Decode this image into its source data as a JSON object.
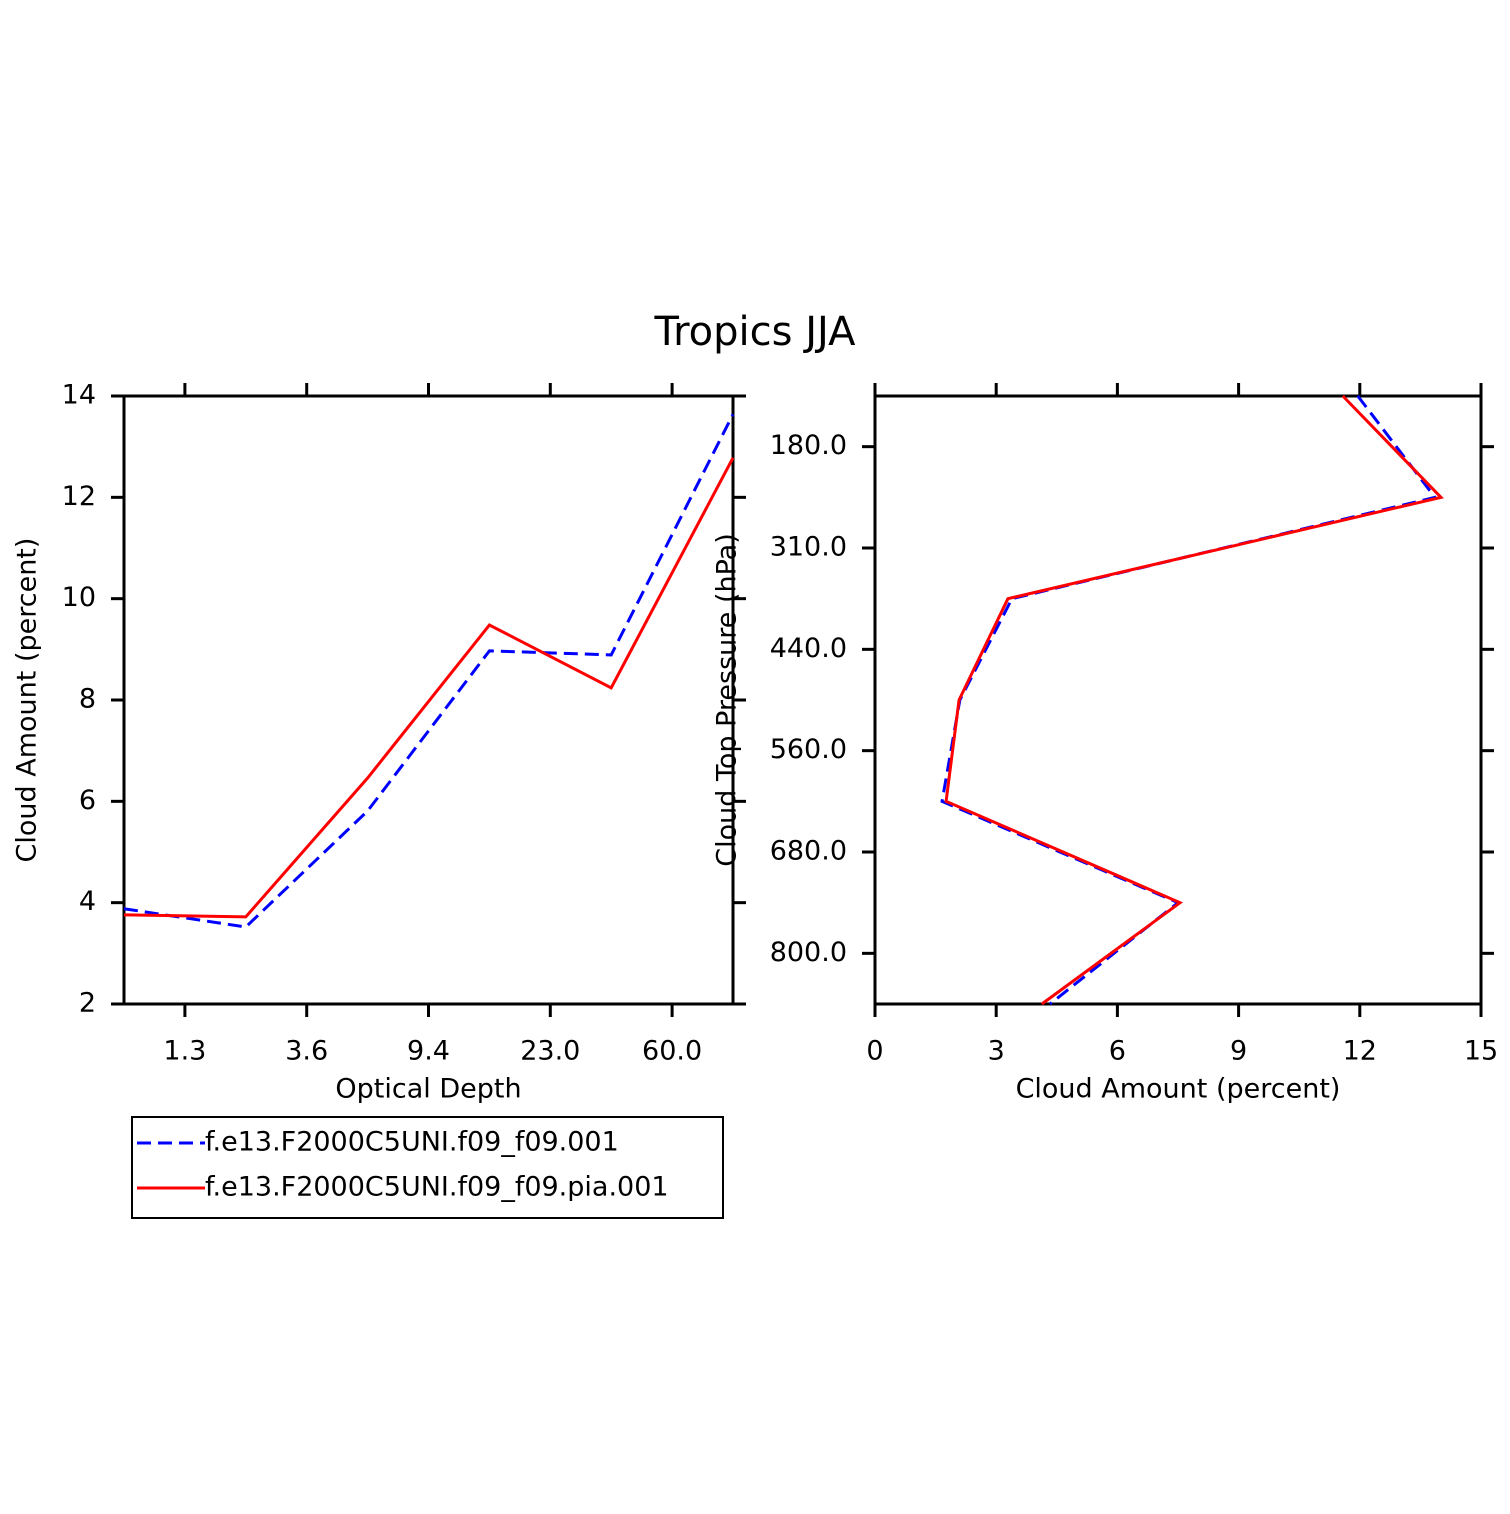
{
  "title": "Tropics JJA",
  "chart_data": [
    {
      "type": "line",
      "xlabel": "Optical Depth",
      "ylabel": "Cloud Amount (percent)",
      "x": [
        0,
        1,
        2,
        3,
        4,
        5
      ],
      "xlim": [
        0,
        5
      ],
      "xticks": [
        {
          "value": 0.5,
          "label": "1.3"
        },
        {
          "value": 1.5,
          "label": "3.6"
        },
        {
          "value": 2.5,
          "label": "9.4"
        },
        {
          "value": 3.5,
          "label": "23.0"
        },
        {
          "value": 4.5,
          "label": "60.0"
        }
      ],
      "ylim": [
        2,
        14
      ],
      "yticks": [
        2,
        4,
        6,
        8,
        10,
        12,
        14
      ],
      "series": [
        {
          "name": "f.e13.F2000C5UNI.f09_f09.001",
          "color": "#0000ff",
          "dashed": true,
          "values": [
            3.88,
            3.52,
            5.81,
            8.97,
            8.89,
            13.64
          ]
        },
        {
          "name": "f.e13.F2000C5UNI.f09_f09.pia.001",
          "color": "#ff0000",
          "dashed": false,
          "values": [
            3.76,
            3.72,
            6.46,
            9.48,
            8.24,
            12.78
          ]
        }
      ]
    },
    {
      "type": "line",
      "orientation": "horizontal",
      "xlabel": "Cloud Amount (percent)",
      "ylabel": "Cloud Top Pressure (hPa)",
      "y": [
        0,
        1,
        2,
        3,
        4,
        5,
        6
      ],
      "ylim": [
        6,
        0
      ],
      "yticks": [
        {
          "value": 0.5,
          "label": "180.0"
        },
        {
          "value": 1.5,
          "label": "310.0"
        },
        {
          "value": 2.5,
          "label": "440.0"
        },
        {
          "value": 3.5,
          "label": "560.0"
        },
        {
          "value": 4.5,
          "label": "680.0"
        },
        {
          "value": 5.5,
          "label": "800.0"
        }
      ],
      "xlim": [
        0,
        15
      ],
      "xticks": [
        0,
        3,
        6,
        9,
        12,
        15
      ],
      "series": [
        {
          "color": "#0000ff",
          "dashed": true,
          "values": [
            11.95,
            13.86,
            3.39,
            2.1,
            1.66,
            7.5,
            4.33
          ]
        },
        {
          "color": "#ff0000",
          "dashed": false,
          "values": [
            11.58,
            14.01,
            3.29,
            2.08,
            1.76,
            7.55,
            4.13
          ]
        }
      ]
    }
  ]
}
